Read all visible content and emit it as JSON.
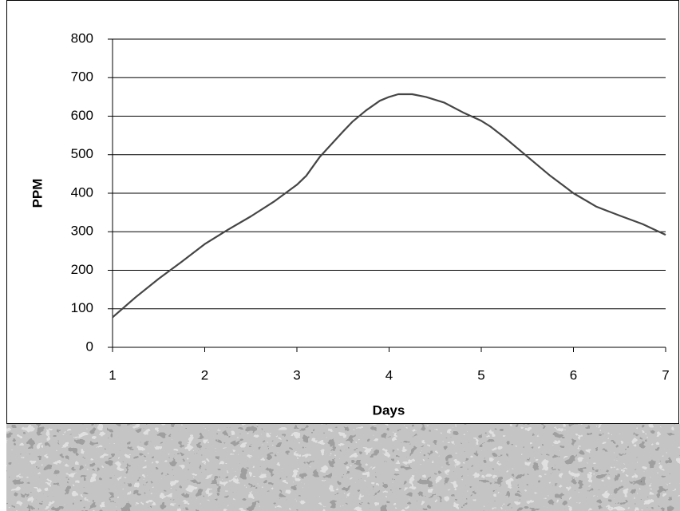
{
  "chart_data": {
    "type": "line",
    "x_label": "Days",
    "y_label": "PPM",
    "x": [
      1,
      1.25,
      1.5,
      1.75,
      2,
      2.25,
      2.5,
      2.75,
      3,
      3.1,
      3.25,
      3.5,
      3.6,
      3.75,
      3.9,
      4,
      4.1,
      4.25,
      4.4,
      4.6,
      4.8,
      5,
      5.1,
      5.25,
      5.5,
      5.75,
      5.9,
      6,
      6.25,
      6.5,
      6.75,
      7
    ],
    "values": [
      78,
      130,
      178,
      222,
      268,
      305,
      340,
      378,
      422,
      445,
      495,
      560,
      585,
      615,
      640,
      650,
      657,
      657,
      650,
      635,
      610,
      588,
      573,
      545,
      495,
      445,
      418,
      400,
      365,
      342,
      320,
      292
    ],
    "color": "#454545",
    "xlim": [
      1,
      7
    ],
    "xticks": [
      1,
      2,
      3,
      4,
      5,
      6,
      7
    ],
    "ylim": [
      0,
      800
    ],
    "yticks": [
      0,
      100,
      200,
      300,
      400,
      500,
      600,
      700,
      800
    ],
    "grid": true
  }
}
